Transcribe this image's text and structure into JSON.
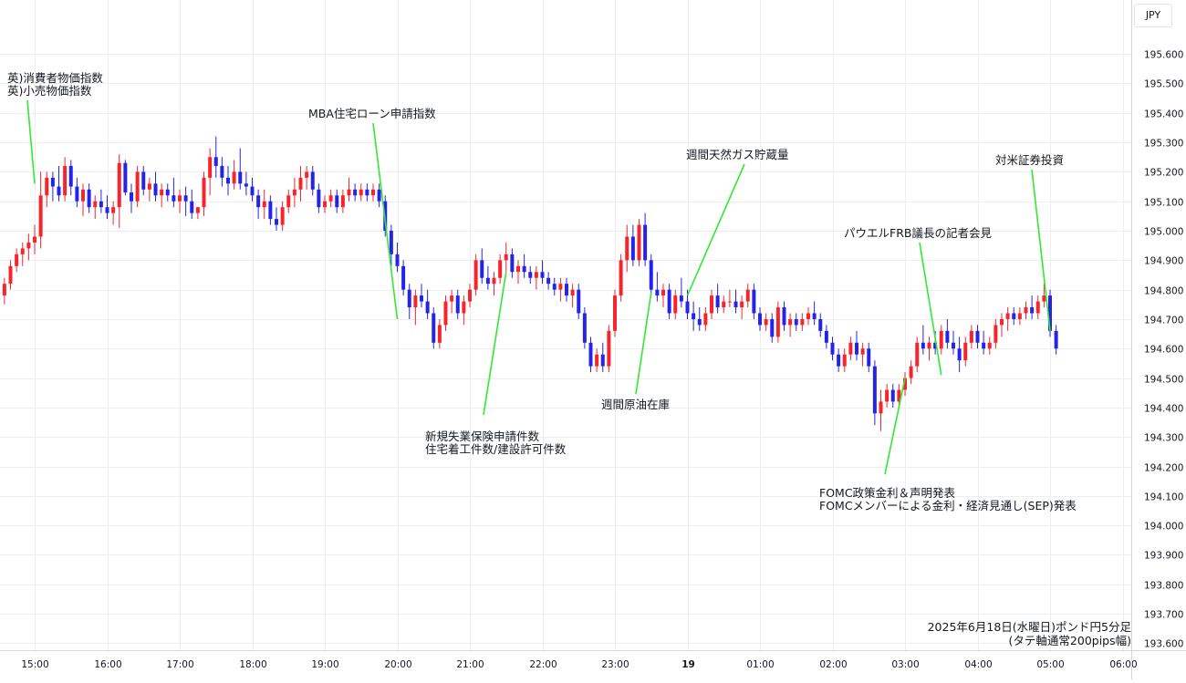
{
  "currency_label": "JPY",
  "caption": {
    "line1": "2025年6月18日(水曜日)ポンド円5分足",
    "line2": "(タテ軸通常200pips幅)"
  },
  "colors": {
    "up": "#f7252b",
    "down": "#2424e8",
    "annotation_line": "#33e833",
    "grid": "#eceef2"
  },
  "chart_data": {
    "type": "candlestick",
    "title": "",
    "ylim": [
      193.6,
      195.65
    ],
    "y_ticks": [
      "195.600",
      "195.500",
      "195.400",
      "195.300",
      "195.200",
      "195.100",
      "195.000",
      "194.900",
      "194.800",
      "194.700",
      "194.600",
      "194.500",
      "194.400",
      "194.300",
      "194.200",
      "194.100",
      "194.000",
      "193.900",
      "193.800",
      "193.700",
      "193.600"
    ],
    "x_ticks": [
      "15:00",
      "16:00",
      "17:00",
      "18:00",
      "19:00",
      "20:00",
      "21:00",
      "22:00",
      "23:00",
      "19",
      "01:00",
      "02:00",
      "03:00",
      "04:00",
      "05:00",
      "06:00"
    ],
    "x_tick_bold": "19",
    "candles_from": "14:35",
    "interval_minutes": 5,
    "candles": [
      [
        194.78,
        194.84,
        194.75,
        194.82
      ],
      [
        194.82,
        194.9,
        194.8,
        194.88
      ],
      [
        194.88,
        194.94,
        194.86,
        194.92
      ],
      [
        194.92,
        194.96,
        194.88,
        194.94
      ],
      [
        194.94,
        194.99,
        194.9,
        194.96
      ],
      [
        194.96,
        195.02,
        194.92,
        194.98
      ],
      [
        194.98,
        195.2,
        194.94,
        195.12
      ],
      [
        195.12,
        195.2,
        195.08,
        195.18
      ],
      [
        195.18,
        195.2,
        195.1,
        195.15
      ],
      [
        195.15,
        195.22,
        195.1,
        195.12
      ],
      [
        195.12,
        195.25,
        195.1,
        195.22
      ],
      [
        195.22,
        195.24,
        195.12,
        195.15
      ],
      [
        195.15,
        195.18,
        195.08,
        195.1
      ],
      [
        195.1,
        195.16,
        195.05,
        195.14
      ],
      [
        195.14,
        195.16,
        195.06,
        195.08
      ],
      [
        195.08,
        195.12,
        195.04,
        195.1
      ],
      [
        195.1,
        195.14,
        195.06,
        195.08
      ],
      [
        195.08,
        195.12,
        195.04,
        195.06
      ],
      [
        195.06,
        195.1,
        195.02,
        195.08
      ],
      [
        195.08,
        195.26,
        195.01,
        195.23
      ],
      [
        195.23,
        195.24,
        195.12,
        195.13
      ],
      [
        195.13,
        195.16,
        195.06,
        195.1
      ],
      [
        195.1,
        195.22,
        195.08,
        195.2
      ],
      [
        195.2,
        195.22,
        195.12,
        195.14
      ],
      [
        195.14,
        195.18,
        195.1,
        195.16
      ],
      [
        195.16,
        195.2,
        195.1,
        195.12
      ],
      [
        195.12,
        195.16,
        195.08,
        195.14
      ],
      [
        195.14,
        195.16,
        195.1,
        195.12
      ],
      [
        195.12,
        195.18,
        195.08,
        195.1
      ],
      [
        195.1,
        195.14,
        195.06,
        195.12
      ],
      [
        195.12,
        195.15,
        195.05,
        195.1
      ],
      [
        195.1,
        195.14,
        195.04,
        195.06
      ],
      [
        195.06,
        195.08,
        195.04,
        195.08
      ],
      [
        195.08,
        195.2,
        195.05,
        195.18
      ],
      [
        195.18,
        195.28,
        195.12,
        195.25
      ],
      [
        195.25,
        195.32,
        195.18,
        195.22
      ],
      [
        195.22,
        195.25,
        195.15,
        195.18
      ],
      [
        195.18,
        195.22,
        195.12,
        195.16
      ],
      [
        195.16,
        195.24,
        195.14,
        195.2
      ],
      [
        195.2,
        195.28,
        195.14,
        195.16
      ],
      [
        195.16,
        195.2,
        195.12,
        195.15
      ],
      [
        195.15,
        195.18,
        195.1,
        195.12
      ],
      [
        195.12,
        195.14,
        195.04,
        195.08
      ],
      [
        195.08,
        195.14,
        195.04,
        195.1
      ],
      [
        195.1,
        195.12,
        195.02,
        195.04
      ],
      [
        195.04,
        195.08,
        195.0,
        195.02
      ],
      [
        195.02,
        195.1,
        195.0,
        195.08
      ],
      [
        195.08,
        195.14,
        195.06,
        195.12
      ],
      [
        195.12,
        195.18,
        195.08,
        195.14
      ],
      [
        195.14,
        195.22,
        195.1,
        195.18
      ],
      [
        195.18,
        195.22,
        195.14,
        195.2
      ],
      [
        195.2,
        195.22,
        195.12,
        195.14
      ],
      [
        195.14,
        195.16,
        195.06,
        195.08
      ],
      [
        195.08,
        195.12,
        195.06,
        195.1
      ],
      [
        195.1,
        195.14,
        195.08,
        195.12
      ],
      [
        195.12,
        195.14,
        195.06,
        195.08
      ],
      [
        195.08,
        195.14,
        195.06,
        195.12
      ],
      [
        195.12,
        195.18,
        195.1,
        195.14
      ],
      [
        195.14,
        195.16,
        195.1,
        195.12
      ],
      [
        195.12,
        195.16,
        195.1,
        195.14
      ],
      [
        195.14,
        195.16,
        195.1,
        195.12
      ],
      [
        195.12,
        195.16,
        195.1,
        195.14
      ],
      [
        195.14,
        195.16,
        195.08,
        195.1
      ],
      [
        195.1,
        195.12,
        194.98,
        195.0
      ],
      [
        195.0,
        195.02,
        194.88,
        194.92
      ],
      [
        194.92,
        194.96,
        194.86,
        194.88
      ],
      [
        194.88,
        194.9,
        194.78,
        194.8
      ],
      [
        194.8,
        194.82,
        194.7,
        194.74
      ],
      [
        194.74,
        194.8,
        194.68,
        194.78
      ],
      [
        194.78,
        194.82,
        194.74,
        194.76
      ],
      [
        194.76,
        194.8,
        194.7,
        194.72
      ],
      [
        194.72,
        194.74,
        194.6,
        194.62
      ],
      [
        194.62,
        194.7,
        194.6,
        194.68
      ],
      [
        194.68,
        194.78,
        194.66,
        194.76
      ],
      [
        194.76,
        194.8,
        194.72,
        194.78
      ],
      [
        194.78,
        194.8,
        194.7,
        194.72
      ],
      [
        194.72,
        194.78,
        194.68,
        194.76
      ],
      [
        194.76,
        194.82,
        194.74,
        194.8
      ],
      [
        194.8,
        194.92,
        194.78,
        194.9
      ],
      [
        194.9,
        194.94,
        194.82,
        194.84
      ],
      [
        194.84,
        194.88,
        194.8,
        194.82
      ],
      [
        194.82,
        194.86,
        194.78,
        194.84
      ],
      [
        194.84,
        194.92,
        194.82,
        194.9
      ],
      [
        194.9,
        194.96,
        194.86,
        194.92
      ],
      [
        194.92,
        194.94,
        194.84,
        194.86
      ],
      [
        194.86,
        194.9,
        194.82,
        194.88
      ],
      [
        194.88,
        194.92,
        194.84,
        194.86
      ],
      [
        194.86,
        194.88,
        194.82,
        194.84
      ],
      [
        194.84,
        194.88,
        194.8,
        194.86
      ],
      [
        194.86,
        194.9,
        194.82,
        194.84
      ],
      [
        194.84,
        194.86,
        194.8,
        194.82
      ],
      [
        194.82,
        194.84,
        194.78,
        194.8
      ],
      [
        194.8,
        194.84,
        194.76,
        194.82
      ],
      [
        194.82,
        194.84,
        194.76,
        194.78
      ],
      [
        194.78,
        194.82,
        194.74,
        194.8
      ],
      [
        194.8,
        194.82,
        194.7,
        194.72
      ],
      [
        194.72,
        194.74,
        194.6,
        194.62
      ],
      [
        194.62,
        194.64,
        194.52,
        194.54
      ],
      [
        194.54,
        194.6,
        194.52,
        194.58
      ],
      [
        194.58,
        194.62,
        194.52,
        194.54
      ],
      [
        194.54,
        194.68,
        194.52,
        194.66
      ],
      [
        194.66,
        194.8,
        194.64,
        194.78
      ],
      [
        194.78,
        194.92,
        194.76,
        194.9
      ],
      [
        194.9,
        195.02,
        194.86,
        194.98
      ],
      [
        194.98,
        195.02,
        194.88,
        194.9
      ],
      [
        194.9,
        195.04,
        194.88,
        195.02
      ],
      [
        195.02,
        195.06,
        194.88,
        194.9
      ],
      [
        194.9,
        194.92,
        194.78,
        194.8
      ],
      [
        194.8,
        194.86,
        194.76,
        194.78
      ],
      [
        194.78,
        194.82,
        194.74,
        194.8
      ],
      [
        194.8,
        194.82,
        194.7,
        194.72
      ],
      [
        194.72,
        194.8,
        194.7,
        194.78
      ],
      [
        194.78,
        194.84,
        194.74,
        194.76
      ],
      [
        194.76,
        194.8,
        194.7,
        194.72
      ],
      [
        194.72,
        194.76,
        194.66,
        194.7
      ],
      [
        194.7,
        194.74,
        194.66,
        194.68
      ],
      [
        194.68,
        194.74,
        194.66,
        194.72
      ],
      [
        194.72,
        194.8,
        194.7,
        194.78
      ],
      [
        194.78,
        194.82,
        194.72,
        194.74
      ],
      [
        194.74,
        194.78,
        194.72,
        194.76
      ],
      [
        194.76,
        194.8,
        194.74,
        194.76
      ],
      [
        194.76,
        194.8,
        194.72,
        194.74
      ],
      [
        194.74,
        194.78,
        194.7,
        194.76
      ],
      [
        194.76,
        194.82,
        194.74,
        194.8
      ],
      [
        194.8,
        194.82,
        194.7,
        194.72
      ],
      [
        194.72,
        194.74,
        194.66,
        194.68
      ],
      [
        194.68,
        194.72,
        194.66,
        194.7
      ],
      [
        194.7,
        194.72,
        194.62,
        194.64
      ],
      [
        194.64,
        194.76,
        194.62,
        194.74
      ],
      [
        194.74,
        194.76,
        194.66,
        194.68
      ],
      [
        194.68,
        194.72,
        194.64,
        194.7
      ],
      [
        194.7,
        194.72,
        194.66,
        194.68
      ],
      [
        194.68,
        194.72,
        194.66,
        194.7
      ],
      [
        194.7,
        194.74,
        194.68,
        194.72
      ],
      [
        194.72,
        194.76,
        194.68,
        194.7
      ],
      [
        194.7,
        194.72,
        194.64,
        194.66
      ],
      [
        194.66,
        194.68,
        194.6,
        194.62
      ],
      [
        194.62,
        194.64,
        194.56,
        194.58
      ],
      [
        194.58,
        194.6,
        194.52,
        194.54
      ],
      [
        194.54,
        194.6,
        194.52,
        194.58
      ],
      [
        194.58,
        194.64,
        194.56,
        194.62
      ],
      [
        194.62,
        194.66,
        194.56,
        194.58
      ],
      [
        194.58,
        194.62,
        194.54,
        194.6
      ],
      [
        194.6,
        194.62,
        194.52,
        194.54
      ],
      [
        194.54,
        194.56,
        194.34,
        194.38
      ],
      [
        194.38,
        194.46,
        194.32,
        194.42
      ],
      [
        194.42,
        194.48,
        194.4,
        194.46
      ],
      [
        194.46,
        194.48,
        194.4,
        194.42
      ],
      [
        194.42,
        194.48,
        194.4,
        194.46
      ],
      [
        194.46,
        194.52,
        194.44,
        194.5
      ],
      [
        194.5,
        194.56,
        194.48,
        194.54
      ],
      [
        194.54,
        194.64,
        194.52,
        194.62
      ],
      [
        194.62,
        194.68,
        194.58,
        194.6
      ],
      [
        194.6,
        194.64,
        194.56,
        194.62
      ],
      [
        194.62,
        194.66,
        194.58,
        194.6
      ],
      [
        194.6,
        194.68,
        194.58,
        194.66
      ],
      [
        194.66,
        194.7,
        194.6,
        194.62
      ],
      [
        194.62,
        194.66,
        194.58,
        194.6
      ],
      [
        194.6,
        194.64,
        194.52,
        194.56
      ],
      [
        194.56,
        194.64,
        194.54,
        194.62
      ],
      [
        194.62,
        194.68,
        194.6,
        194.66
      ],
      [
        194.66,
        194.68,
        194.6,
        194.62
      ],
      [
        194.62,
        194.66,
        194.58,
        194.6
      ],
      [
        194.6,
        194.64,
        194.58,
        194.62
      ],
      [
        194.62,
        194.7,
        194.6,
        194.68
      ],
      [
        194.68,
        194.72,
        194.64,
        194.7
      ],
      [
        194.7,
        194.74,
        194.66,
        194.72
      ],
      [
        194.72,
        194.74,
        194.68,
        194.7
      ],
      [
        194.7,
        194.74,
        194.68,
        194.72
      ],
      [
        194.72,
        194.76,
        194.7,
        194.74
      ],
      [
        194.74,
        194.78,
        194.7,
        194.72
      ],
      [
        194.72,
        194.78,
        194.7,
        194.76
      ],
      [
        194.76,
        194.82,
        194.74,
        194.78
      ],
      [
        194.78,
        194.8,
        194.64,
        194.66
      ],
      [
        194.66,
        194.68,
        194.58,
        194.6
      ]
    ],
    "annotations": [
      {
        "lines": [
          "英)消費者物価指数",
          "英)小売物価指数"
        ],
        "time": "15:00",
        "price": 195.16,
        "label_side": "above"
      },
      {
        "lines": [
          "MBA住宅ローン申請指数"
        ],
        "time": "20:00",
        "price": 194.7,
        "label_side": "above"
      },
      {
        "lines": [
          "新規失業保険申請件数",
          "住宅着工件数/建設許可件数"
        ],
        "time": "21:30",
        "price": 194.86,
        "label_side": "below"
      },
      {
        "lines": [
          "週間原油在庫"
        ],
        "time": "23:30",
        "price": 194.79,
        "label_side": "below"
      },
      {
        "lines": [
          "週間天然ガス貯蔵量"
        ],
        "time": "00:00",
        "price": 194.78,
        "label_side": "above"
      },
      {
        "lines": [
          "FOMC政策金利＆声明発表",
          "FOMCメンバーによる金利・経済見通し(SEP)発表"
        ],
        "time": "03:00",
        "price": 194.5,
        "label_side": "below"
      },
      {
        "lines": [
          "パウエルFRB議長の記者会見"
        ],
        "time": "03:30",
        "price": 194.51,
        "label_side": "above"
      },
      {
        "lines": [
          "対米証券投資"
        ],
        "time": "05:00",
        "price": 194.66,
        "label_side": "above"
      }
    ]
  }
}
